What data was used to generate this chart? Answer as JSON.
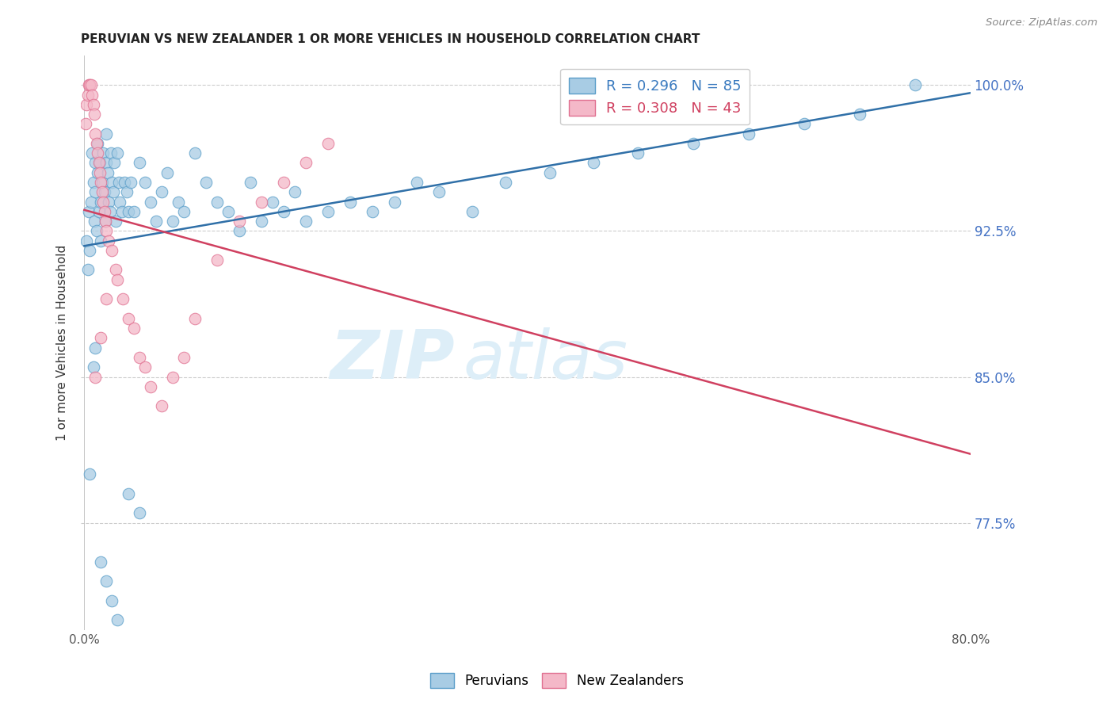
{
  "title": "PERUVIAN VS NEW ZEALANDER 1 OR MORE VEHICLES IN HOUSEHOLD CORRELATION CHART",
  "source": "Source: ZipAtlas.com",
  "ylabel": "1 or more Vehicles in Household",
  "xlim_pct": [
    0.0,
    80.0
  ],
  "ylim": [
    72.0,
    101.5
  ],
  "yticks": [
    77.5,
    85.0,
    92.5,
    100.0
  ],
  "ytick_labels": [
    "77.5%",
    "85.0%",
    "92.5%",
    "100.0%"
  ],
  "xtick_labels": [
    "0.0%",
    "",
    "",
    "",
    "",
    "",
    "",
    "",
    "80.0%"
  ],
  "legend_r1": "R = 0.296",
  "legend_n1": "N = 85",
  "legend_r2": "R = 0.308",
  "legend_n2": "N = 43",
  "blue_color": "#a8cce4",
  "pink_color": "#f4b8c8",
  "blue_edge_color": "#5a9ec9",
  "pink_edge_color": "#e07090",
  "blue_line_color": "#3070a8",
  "pink_line_color": "#d04060",
  "watermark_color": "#ddeef8",
  "blue_r": 0.296,
  "blue_n": 85,
  "pink_r": 0.308,
  "pink_n": 43,
  "blue_scatter_x": [
    0.2,
    0.3,
    0.4,
    0.5,
    0.6,
    0.7,
    0.8,
    0.9,
    1.0,
    1.0,
    1.1,
    1.2,
    1.2,
    1.3,
    1.4,
    1.5,
    1.5,
    1.6,
    1.7,
    1.8,
    1.9,
    2.0,
    2.0,
    2.1,
    2.2,
    2.3,
    2.4,
    2.5,
    2.6,
    2.7,
    2.8,
    3.0,
    3.1,
    3.2,
    3.4,
    3.6,
    3.8,
    4.0,
    4.2,
    4.5,
    5.0,
    5.5,
    6.0,
    6.5,
    7.0,
    7.5,
    8.0,
    8.5,
    9.0,
    10.0,
    11.0,
    12.0,
    13.0,
    14.0,
    15.0,
    16.0,
    17.0,
    18.0,
    19.0,
    20.0,
    22.0,
    24.0,
    26.0,
    28.0,
    30.0,
    32.0,
    35.0,
    38.0,
    42.0,
    46.0,
    50.0,
    55.0,
    60.0,
    65.0,
    70.0,
    75.0,
    0.5,
    0.8,
    1.0,
    1.5,
    2.0,
    2.5,
    3.0,
    4.0,
    5.0
  ],
  "blue_scatter_y": [
    92.0,
    90.5,
    93.5,
    91.5,
    94.0,
    96.5,
    95.0,
    93.0,
    94.5,
    96.0,
    92.5,
    95.5,
    97.0,
    93.5,
    96.0,
    94.0,
    92.0,
    95.0,
    96.5,
    94.5,
    93.0,
    96.0,
    97.5,
    95.5,
    94.0,
    93.5,
    96.5,
    95.0,
    94.5,
    96.0,
    93.0,
    96.5,
    95.0,
    94.0,
    93.5,
    95.0,
    94.5,
    93.5,
    95.0,
    93.5,
    96.0,
    95.0,
    94.0,
    93.0,
    94.5,
    95.5,
    93.0,
    94.0,
    93.5,
    96.5,
    95.0,
    94.0,
    93.5,
    92.5,
    95.0,
    93.0,
    94.0,
    93.5,
    94.5,
    93.0,
    93.5,
    94.0,
    93.5,
    94.0,
    95.0,
    94.5,
    93.5,
    95.0,
    95.5,
    96.0,
    96.5,
    97.0,
    97.5,
    98.0,
    98.5,
    100.0,
    80.0,
    85.5,
    86.5,
    75.5,
    74.5,
    73.5,
    72.5,
    79.0,
    78.0
  ],
  "pink_scatter_x": [
    0.1,
    0.2,
    0.3,
    0.4,
    0.5,
    0.6,
    0.7,
    0.8,
    0.9,
    1.0,
    1.1,
    1.2,
    1.3,
    1.4,
    1.5,
    1.6,
    1.7,
    1.8,
    1.9,
    2.0,
    2.2,
    2.5,
    2.8,
    3.0,
    3.5,
    4.0,
    4.5,
    5.0,
    5.5,
    6.0,
    7.0,
    8.0,
    9.0,
    10.0,
    12.0,
    14.0,
    16.0,
    18.0,
    20.0,
    22.0,
    1.0,
    1.5,
    2.0
  ],
  "pink_scatter_y": [
    98.0,
    99.0,
    99.5,
    100.0,
    100.0,
    100.0,
    99.5,
    99.0,
    98.5,
    97.5,
    97.0,
    96.5,
    96.0,
    95.5,
    95.0,
    94.5,
    94.0,
    93.5,
    93.0,
    92.5,
    92.0,
    91.5,
    90.5,
    90.0,
    89.0,
    88.0,
    87.5,
    86.0,
    85.5,
    84.5,
    83.5,
    85.0,
    86.0,
    88.0,
    91.0,
    93.0,
    94.0,
    95.0,
    96.0,
    97.0,
    85.0,
    87.0,
    89.0
  ]
}
